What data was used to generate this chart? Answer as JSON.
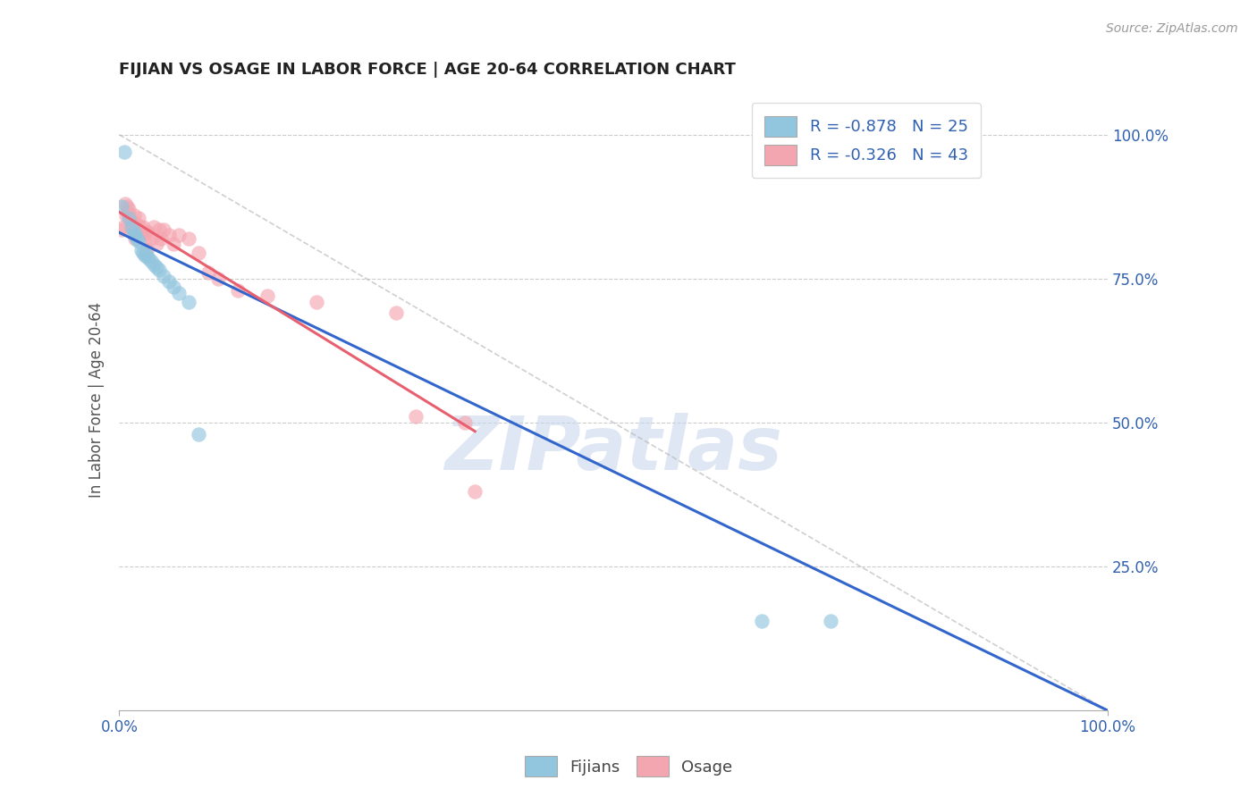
{
  "title": "FIJIAN VS OSAGE IN LABOR FORCE | AGE 20-64 CORRELATION CHART",
  "source_text": "Source: ZipAtlas.com",
  "ylabel": "In Labor Force | Age 20-64",
  "fijian_color": "#92c5de",
  "osage_color": "#f4a6b0",
  "fijian_label": "Fijians",
  "osage_label": "Osage",
  "fijian_R": -0.878,
  "fijian_N": 25,
  "osage_R": -0.326,
  "osage_N": 43,
  "legend_text_color": "#3060b0",
  "watermark_color": "#c8d8ec",
  "fijian_x": [
    0.005,
    0.01,
    0.012,
    0.015,
    0.016,
    0.018,
    0.02,
    0.022,
    0.024,
    0.026,
    0.028,
    0.03,
    0.032,
    0.035,
    0.038,
    0.04,
    0.045,
    0.05,
    0.055,
    0.06,
    0.07,
    0.08,
    0.65,
    0.72,
    0.002
  ],
  "fijian_y": [
    0.97,
    0.855,
    0.84,
    0.83,
    0.825,
    0.82,
    0.815,
    0.8,
    0.795,
    0.79,
    0.79,
    0.785,
    0.78,
    0.775,
    0.77,
    0.765,
    0.755,
    0.745,
    0.735,
    0.725,
    0.71,
    0.48,
    0.155,
    0.155,
    0.875
  ],
  "osage_x": [
    0.002,
    0.004,
    0.006,
    0.007,
    0.008,
    0.009,
    0.01,
    0.011,
    0.012,
    0.013,
    0.014,
    0.015,
    0.016,
    0.018,
    0.019,
    0.02,
    0.021,
    0.022,
    0.024,
    0.025,
    0.027,
    0.028,
    0.03,
    0.032,
    0.035,
    0.038,
    0.04,
    0.042,
    0.045,
    0.05,
    0.055,
    0.06,
    0.07,
    0.08,
    0.09,
    0.1,
    0.12,
    0.15,
    0.2,
    0.28,
    0.3,
    0.35,
    0.36
  ],
  "osage_y": [
    0.835,
    0.84,
    0.88,
    0.86,
    0.875,
    0.865,
    0.87,
    0.855,
    0.85,
    0.84,
    0.835,
    0.86,
    0.82,
    0.845,
    0.83,
    0.855,
    0.84,
    0.83,
    0.84,
    0.82,
    0.83,
    0.8,
    0.83,
    0.82,
    0.84,
    0.81,
    0.835,
    0.82,
    0.835,
    0.825,
    0.81,
    0.825,
    0.82,
    0.795,
    0.76,
    0.75,
    0.73,
    0.72,
    0.71,
    0.69,
    0.51,
    0.5,
    0.38
  ],
  "xlim": [
    0,
    1.0
  ],
  "ylim": [
    0,
    1.08
  ],
  "yticks": [
    0.25,
    0.5,
    0.75,
    1.0
  ],
  "ytick_labels": [
    "25.0%",
    "50.0%",
    "75.0%",
    "100.0%"
  ],
  "bg_color": "#ffffff",
  "grid_color": "#cccccc",
  "fijian_line_color": "#3366cc",
  "osage_line_color": "#e86070",
  "ref_line_color": "#bbbbbb",
  "fijian_line_x0": 0.0,
  "fijian_line_y0": 0.83,
  "fijian_line_x1": 1.0,
  "fijian_line_y1": 0.0,
  "osage_line_x0": 0.0,
  "osage_line_x1": 0.36
}
